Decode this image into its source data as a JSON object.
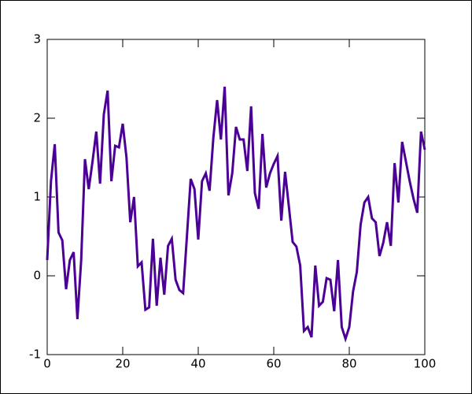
{
  "chart_data": {
    "type": "line",
    "x": [
      0,
      1,
      2,
      3,
      4,
      5,
      6,
      7,
      8,
      9,
      10,
      11,
      12,
      13,
      14,
      15,
      16,
      17,
      18,
      19,
      20,
      21,
      22,
      23,
      24,
      25,
      26,
      27,
      28,
      29,
      30,
      31,
      32,
      33,
      34,
      35,
      36,
      37,
      38,
      39,
      40,
      41,
      42,
      43,
      44,
      45,
      46,
      47,
      48,
      49,
      50,
      51,
      52,
      53,
      54,
      55,
      56,
      57,
      58,
      59,
      60,
      61,
      62,
      63,
      64,
      65,
      66,
      67,
      68,
      69,
      70,
      71,
      72,
      73,
      74,
      75,
      76,
      77,
      78,
      79,
      80,
      81,
      82,
      83,
      84,
      85,
      86,
      87,
      88,
      89,
      90,
      91,
      92,
      93,
      94,
      95,
      96,
      97,
      98,
      99,
      100
    ],
    "series": [
      {
        "color": "#4b0096",
        "values": [
          0.2,
          1.2,
          1.67,
          0.55,
          0.45,
          -0.17,
          0.2,
          0.3,
          -0.55,
          0.2,
          1.48,
          1.1,
          1.45,
          1.83,
          1.17,
          2.05,
          2.35,
          1.2,
          1.65,
          1.63,
          1.93,
          1.5,
          0.68,
          1.0,
          0.12,
          0.17,
          -0.43,
          -0.4,
          0.47,
          -0.38,
          0.23,
          -0.24,
          0.38,
          0.47,
          -0.05,
          -0.18,
          -0.22,
          0.5,
          1.23,
          1.1,
          0.46,
          1.2,
          1.3,
          1.08,
          1.75,
          2.23,
          1.73,
          2.4,
          1.02,
          1.3,
          1.89,
          1.73,
          1.73,
          1.33,
          2.15,
          1.05,
          0.85,
          1.8,
          1.12,
          1.3,
          1.42,
          1.52,
          0.7,
          1.32,
          0.88,
          0.43,
          0.37,
          0.13,
          -0.7,
          -0.65,
          -0.78,
          0.13,
          -0.38,
          -0.33,
          -0.03,
          -0.05,
          -0.45,
          0.2,
          -0.65,
          -0.8,
          -0.65,
          -0.2,
          0.05,
          0.65,
          0.93,
          1.0,
          0.73,
          0.68,
          0.25,
          0.42,
          0.68,
          0.38,
          1.43,
          0.93,
          1.7,
          1.45,
          1.2,
          0.98,
          0.8,
          1.83,
          1.6
        ]
      }
    ],
    "xlim": [
      0,
      100
    ],
    "xticks": [
      0,
      20,
      40,
      60,
      80,
      100
    ],
    "ylim": [
      -1,
      3
    ],
    "yticks": [
      -1,
      0,
      1,
      2,
      3
    ]
  }
}
